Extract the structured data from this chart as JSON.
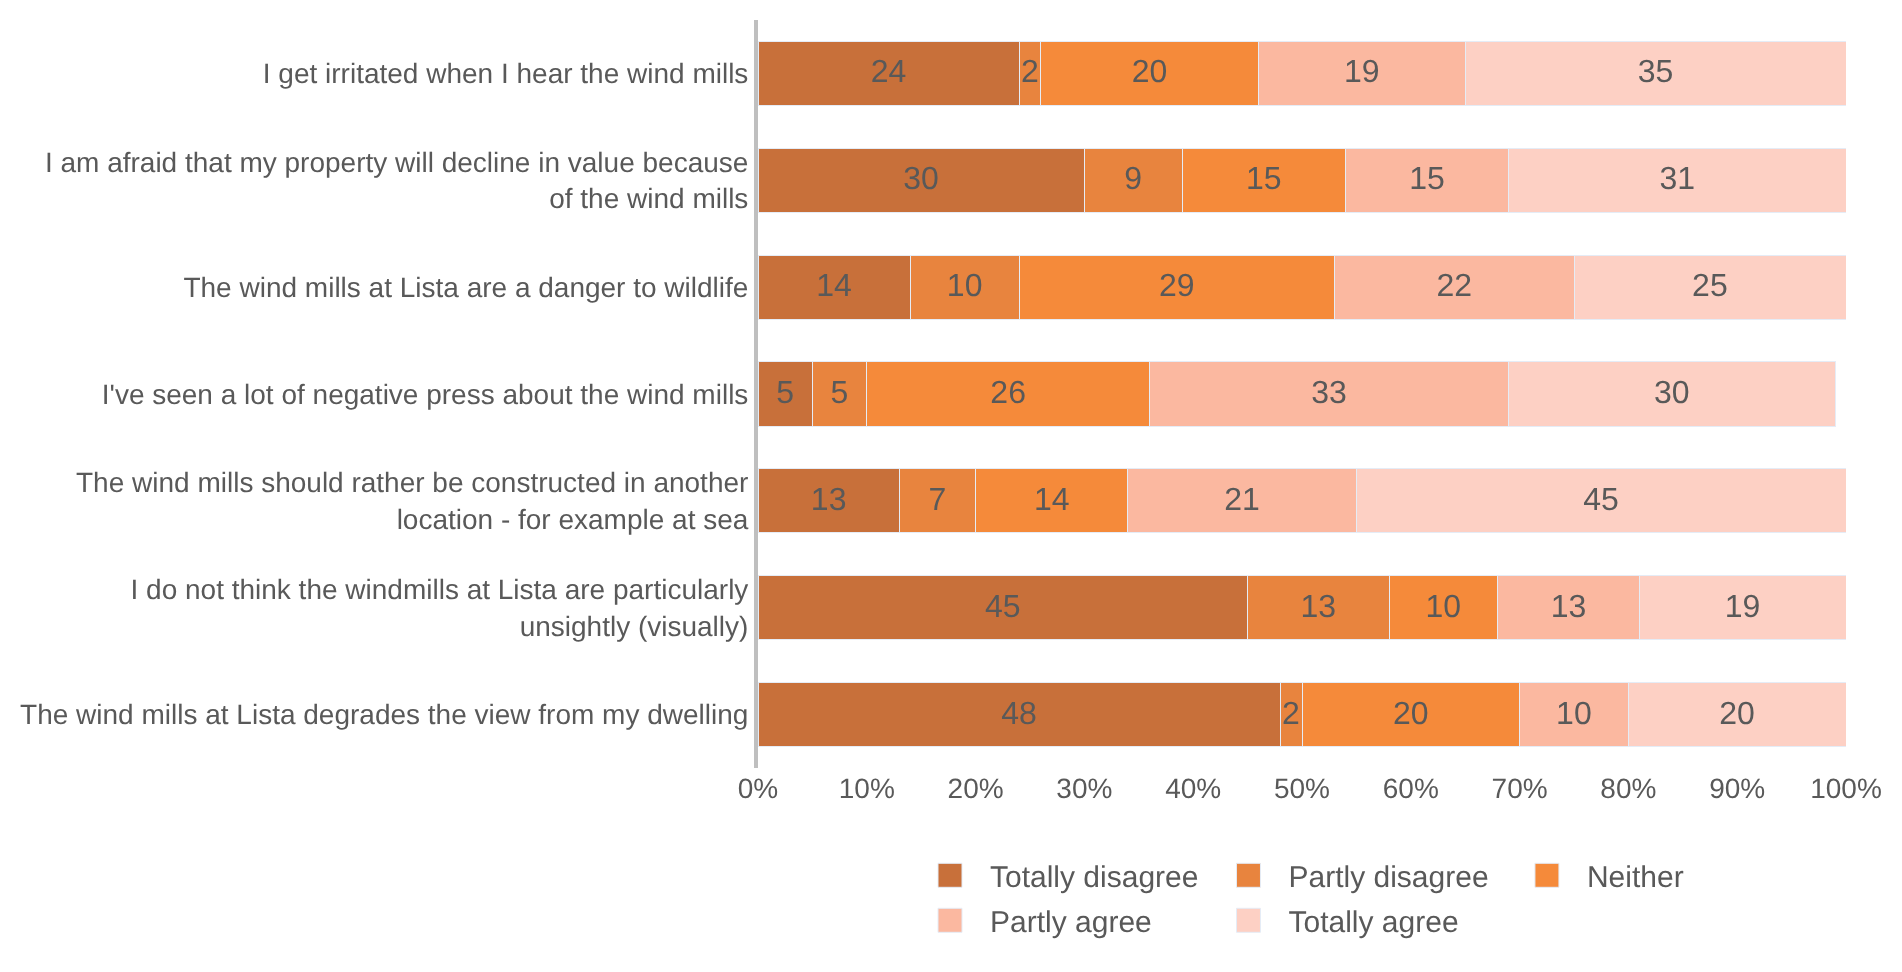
{
  "chart_data": {
    "type": "bar",
    "orientation": "horizontal",
    "stacked": true,
    "data_labels": true,
    "legend": "bottom",
    "categories": [
      "I get irritated when I hear the wind mills",
      "I am afraid that my property will decline in value because of the wind mills",
      "The wind mills at Lista are a danger to wildlife",
      "I've seen a lot of negative press about the wind mills",
      "The wind mills should rather be constructed in another location - for example at sea",
      "I do not think the windmills at Lista are particularly unsightly (visually)",
      "The wind mills at Lista degrades the view from my dwelling"
    ],
    "series": [
      {
        "name": "Totally disagree",
        "color": "#c8703a",
        "values": [
          24,
          30,
          14,
          5,
          13,
          45,
          48
        ]
      },
      {
        "name": "Partly disagree",
        "color": "#e8843e",
        "values": [
          2,
          9,
          10,
          5,
          7,
          13,
          2
        ]
      },
      {
        "name": "Neither",
        "color": "#f58a3a",
        "values": [
          20,
          15,
          29,
          26,
          14,
          10,
          20
        ]
      },
      {
        "name": "Partly agree",
        "color": "#fbb8a0",
        "values": [
          19,
          15,
          22,
          33,
          21,
          13,
          10
        ]
      },
      {
        "name": "Totally agree",
        "color": "#fdd0c4",
        "values": [
          35,
          31,
          25,
          30,
          45,
          19,
          20
        ]
      }
    ],
    "xlim": [
      0,
      100
    ],
    "xticks": [
      {
        "value": 0,
        "label": "0%"
      },
      {
        "value": 10,
        "label": "10%"
      },
      {
        "value": 20,
        "label": "20%"
      },
      {
        "value": 30,
        "label": "30%"
      },
      {
        "value": 40,
        "label": "40%"
      },
      {
        "value": 50,
        "label": "50%"
      },
      {
        "value": 60,
        "label": "60%"
      },
      {
        "value": 70,
        "label": "70%"
      },
      {
        "value": 80,
        "label": "80%"
      },
      {
        "value": 90,
        "label": "90%"
      },
      {
        "value": 100,
        "label": "100%"
      }
    ]
  }
}
